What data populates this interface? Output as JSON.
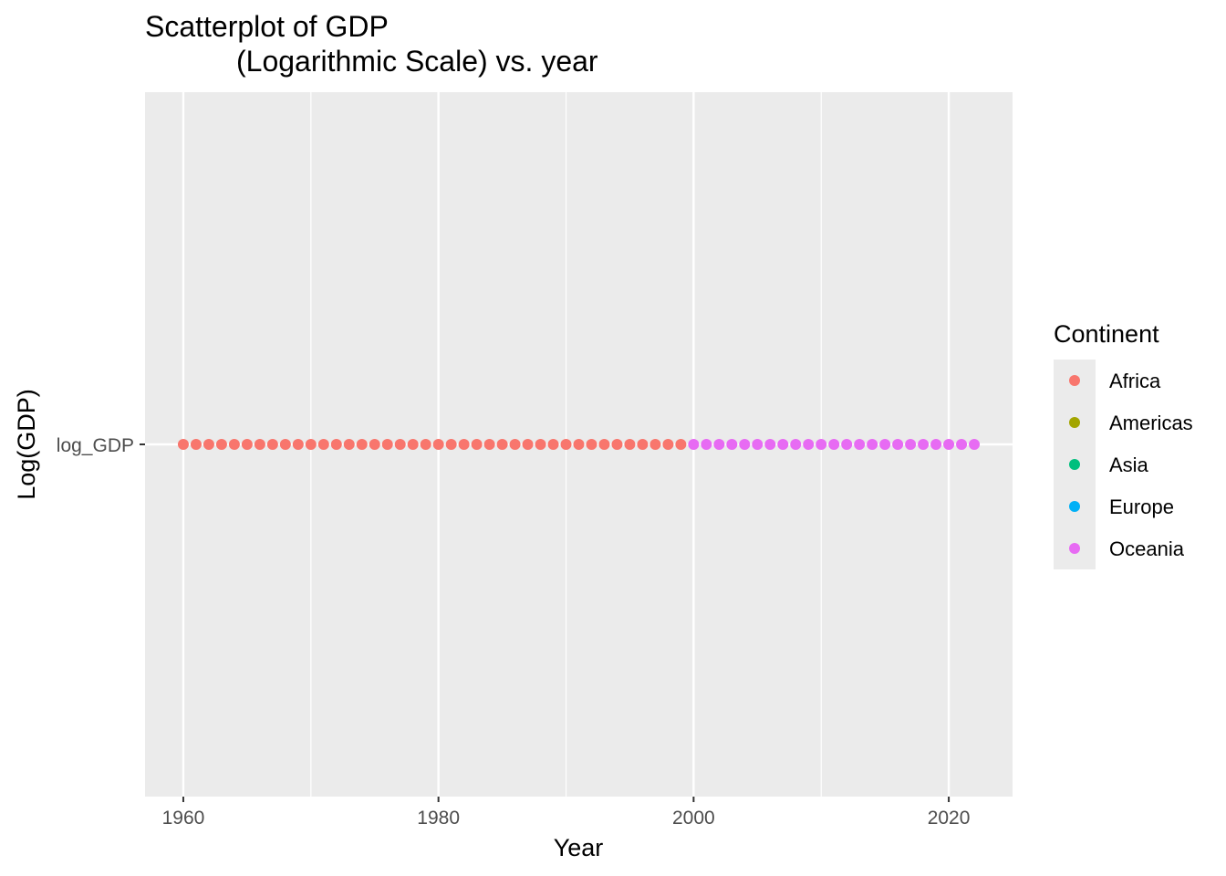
{
  "chart_data": {
    "type": "scatter",
    "title": "Scatterplot of GDP",
    "subtitle": "(Logarithmic Scale) vs. year",
    "xlabel": "Year",
    "ylabel": "Log(GDP)",
    "x_ticks": [
      1960,
      1980,
      2000,
      2020
    ],
    "xlim": [
      1957,
      2025
    ],
    "y_categories": [
      "log_GDP"
    ],
    "grid": true,
    "legend": {
      "title": "Continent",
      "placement": "right",
      "entries": [
        {
          "name": "Africa",
          "color": "#F8766D"
        },
        {
          "name": "Americas",
          "color": "#A3A500"
        },
        {
          "name": "Asia",
          "color": "#00BF7D"
        },
        {
          "name": "Europe",
          "color": "#00B0F6"
        },
        {
          "name": "Oceania",
          "color": "#E76BF3"
        }
      ]
    },
    "series": [
      {
        "name": "Africa",
        "color": "#F8766D",
        "x_start": 1960,
        "x_end": 1999,
        "y": "log_GDP"
      },
      {
        "name": "Oceania",
        "color": "#E76BF3",
        "x_start": 2000,
        "x_end": 2022,
        "y": "log_GDP"
      }
    ]
  }
}
